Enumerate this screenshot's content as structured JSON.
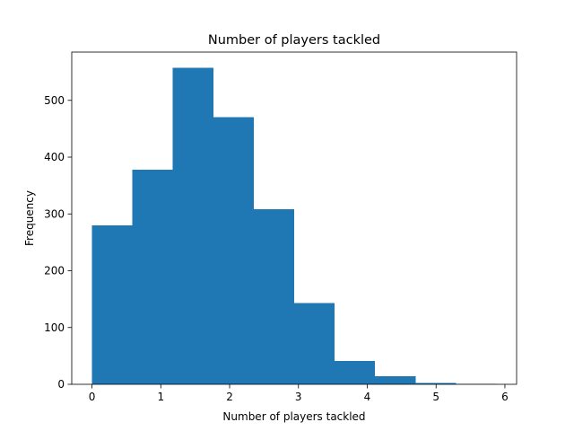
{
  "chart_data": {
    "type": "bar",
    "histogram": true,
    "title": "Number of players tackled",
    "xlabel": "Number of players tackled",
    "ylabel": "Frequency",
    "bin_edges": [
      0,
      0.5876,
      1.1752,
      1.7628,
      2.3504,
      2.938,
      3.5256,
      4.1132,
      4.7008,
      5.2884,
      5.876
    ],
    "values": [
      280,
      378,
      557,
      470,
      308,
      143,
      41,
      14,
      2,
      1
    ],
    "xlim": [
      -0.294,
      6.17
    ],
    "ylim": [
      0,
      585
    ],
    "xticks": [
      0,
      1,
      2,
      3,
      4,
      5,
      6
    ],
    "yticks": [
      0,
      100,
      200,
      300,
      400,
      500
    ],
    "bar_color": "#1f77b4",
    "grid": false,
    "legend": "none"
  }
}
